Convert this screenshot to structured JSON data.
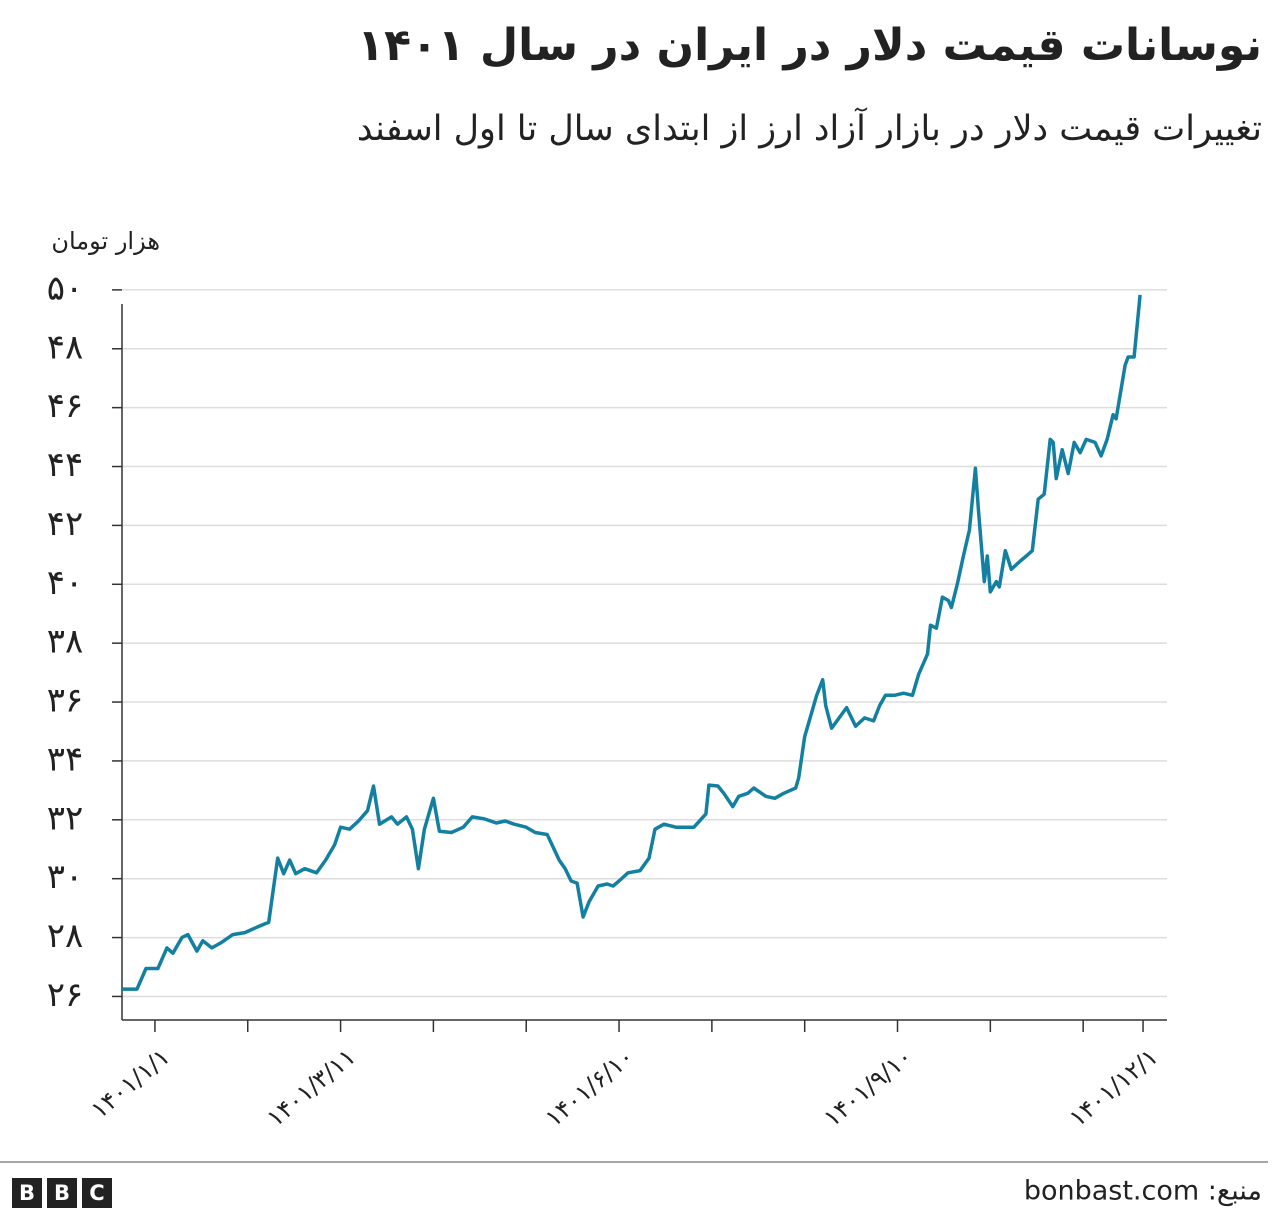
{
  "chart_data": {
    "type": "line",
    "title": "نوسانات قیمت دلار در ایران در سال ۱۴۰۱",
    "subtitle": "تغییرات قیمت دلار در بازار آزاد ارز از ابتدای سال تا اول اسفند",
    "y_label": "هزار تومان",
    "source": "منبع: bonbast.com",
    "logo": [
      "B",
      "B",
      "C"
    ],
    "xlim": [
      -11,
      338
    ],
    "ylim": [
      25.2,
      50.2
    ],
    "grid": true,
    "xticks": [
      {
        "value": 0,
        "label": "۱۴۰۱/۱/۱"
      },
      {
        "value": 31,
        "label": null
      },
      {
        "value": 62,
        "label": "۱۴۰۱/۳/۱۱"
      },
      {
        "value": 93,
        "label": null
      },
      {
        "value": 124,
        "label": null
      },
      {
        "value": 155,
        "label": "۱۴۰۱/۶/۱۰"
      },
      {
        "value": 186,
        "label": null
      },
      {
        "value": 217,
        "label": null
      },
      {
        "value": 248,
        "label": "۱۴۰۱/۹/۱۰"
      },
      {
        "value": 279,
        "label": null
      },
      {
        "value": 310,
        "label": null
      },
      {
        "value": 330,
        "label": "۱۴۰۱/۱۲/۱"
      }
    ],
    "yticks": [
      {
        "value": 26,
        "label": "۲۶"
      },
      {
        "value": 28,
        "label": "۲۸"
      },
      {
        "value": 30,
        "label": "۳۰"
      },
      {
        "value": 32,
        "label": "۳۲"
      },
      {
        "value": 34,
        "label": "۳۴"
      },
      {
        "value": 36,
        "label": "۳۶"
      },
      {
        "value": 38,
        "label": "۳۸"
      },
      {
        "value": 40,
        "label": "۴۰"
      },
      {
        "value": 42,
        "label": "۴۲"
      },
      {
        "value": 44,
        "label": "۴۴"
      },
      {
        "value": 46,
        "label": "۴۶"
      },
      {
        "value": 48,
        "label": "۴۸"
      },
      {
        "value": 50,
        "label": "۵۰"
      }
    ],
    "series": [
      {
        "name": "دلار",
        "color": "#1380a1",
        "x": [
          -11,
          -6,
          -3,
          1,
          4,
          6,
          9,
          11,
          14,
          16,
          19,
          22,
          26,
          30,
          34,
          38,
          41,
          43,
          45,
          47,
          50,
          54,
          57,
          60,
          62,
          65,
          68,
          71,
          73,
          75,
          79,
          81,
          84,
          86,
          88,
          90,
          93,
          95,
          99,
          103,
          106,
          110,
          114,
          117,
          120,
          124,
          127,
          131,
          135,
          137,
          139,
          141,
          143,
          145,
          148,
          151,
          153,
          155,
          158,
          162,
          165,
          167,
          170,
          174,
          177,
          180,
          184,
          185,
          188,
          190,
          193,
          195,
          198,
          200,
          204,
          207,
          210,
          214,
          215,
          217,
          219,
          221,
          223,
          224,
          226,
          229,
          231,
          234,
          237,
          240,
          242,
          244,
          247,
          250,
          253,
          255,
          258,
          259,
          261,
          263,
          265,
          266,
          268,
          270,
          272,
          274,
          275,
          277,
          278,
          279,
          281,
          282,
          284,
          286,
          289,
          291,
          293,
          295,
          297,
          299,
          300,
          301,
          303,
          305,
          307,
          309,
          311,
          314,
          316,
          318,
          320,
          321,
          324,
          325,
          327,
          329
        ],
        "values": [
          26.25,
          26.25,
          26.95,
          26.95,
          27.65,
          27.47,
          28.0,
          28.1,
          27.54,
          27.89,
          27.65,
          27.82,
          28.1,
          28.17,
          28.35,
          28.52,
          30.7,
          30.17,
          30.63,
          30.17,
          30.34,
          30.2,
          30.63,
          31.15,
          31.75,
          31.68,
          31.96,
          32.31,
          33.15,
          31.85,
          32.1,
          31.85,
          32.1,
          31.68,
          30.34,
          31.68,
          32.73,
          31.61,
          31.57,
          31.75,
          32.1,
          32.03,
          31.89,
          31.96,
          31.85,
          31.75,
          31.57,
          31.5,
          30.63,
          30.34,
          29.92,
          29.85,
          28.7,
          29.22,
          29.75,
          29.82,
          29.75,
          29.92,
          30.2,
          30.27,
          30.7,
          31.68,
          31.85,
          31.75,
          31.75,
          31.75,
          32.2,
          33.18,
          33.15,
          32.9,
          32.45,
          32.8,
          32.9,
          33.08,
          32.8,
          32.73,
          32.9,
          33.08,
          33.43,
          34.83,
          35.53,
          36.23,
          36.76,
          35.88,
          35.11,
          35.53,
          35.81,
          35.18,
          35.46,
          35.36,
          35.88,
          36.23,
          36.23,
          36.3,
          36.23,
          36.93,
          37.63,
          38.61,
          38.51,
          39.56,
          39.45,
          39.21,
          40.02,
          40.96,
          41.84,
          43.94,
          42.54,
          40.09,
          40.96,
          39.74,
          40.09,
          39.91,
          41.14,
          40.51,
          40.79,
          40.96,
          41.14,
          42.89,
          43.06,
          44.92,
          44.82,
          43.59,
          44.57,
          43.76,
          44.82,
          44.47,
          44.92,
          44.82,
          44.36,
          44.92,
          45.76,
          45.62,
          47.44,
          47.72,
          47.72,
          49.83
        ]
      }
    ]
  }
}
